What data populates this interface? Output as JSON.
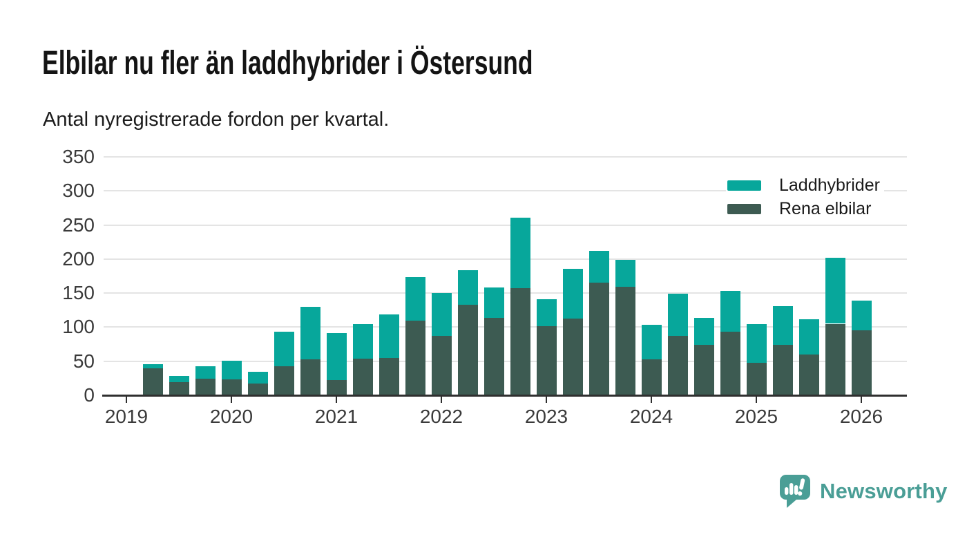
{
  "header": {
    "title": "Elbilar nu fler än laddhybrider i Östersund",
    "subtitle": "Antal nyregistrerade fordon per kvartal."
  },
  "chart_data": {
    "type": "bar",
    "stacked": true,
    "stack_order_bottom_to_top": [
      "Rena elbilar",
      "Laddhybrider"
    ],
    "x_quarters": [
      "2019 Q2",
      "2019 Q3",
      "2019 Q4",
      "2020 Q1",
      "2020 Q2",
      "2020 Q3",
      "2020 Q4",
      "2021 Q1",
      "2021 Q2",
      "2021 Q3",
      "2021 Q4",
      "2022 Q1",
      "2022 Q2",
      "2022 Q3",
      "2022 Q4",
      "2023 Q1",
      "2023 Q2",
      "2023 Q3",
      "2023 Q4",
      "2024 Q1",
      "2024 Q2",
      "2024 Q3",
      "2024 Q4",
      "2025 Q1",
      "2025 Q2",
      "2025 Q3",
      "2025 Q4",
      "2026 Q1"
    ],
    "x_year_ticks": [
      "2019",
      "2020",
      "2021",
      "2022",
      "2023",
      "2024",
      "2025",
      "2026"
    ],
    "series": [
      {
        "name": "Laddhybrider",
        "color": "#07a79b",
        "values": [
          6,
          9,
          19,
          28,
          17,
          50,
          77,
          69,
          51,
          64,
          63,
          63,
          51,
          44,
          104,
          40,
          73,
          47,
          40,
          50,
          62,
          40,
          60,
          56,
          57,
          52,
          97,
          44
        ]
      },
      {
        "name": "Rena elbilar",
        "color": "#3d5b52",
        "values": [
          40,
          19,
          24,
          23,
          17,
          43,
          53,
          22,
          54,
          55,
          110,
          87,
          133,
          114,
          157,
          101,
          113,
          165,
          159,
          53,
          87,
          74,
          93,
          48,
          74,
          60,
          105,
          95
        ]
      }
    ],
    "totals": [
      46,
      28,
      43,
      51,
      34,
      93,
      130,
      91,
      105,
      119,
      173,
      150,
      184,
      158,
      261,
      141,
      186,
      212,
      199,
      103,
      149,
      114,
      153,
      104,
      131,
      112,
      202,
      139
    ],
    "title": "Elbilar nu fler än laddhybrider i Östersund",
    "xlabel": "",
    "ylabel": "",
    "ylim": [
      0,
      350
    ],
    "yticks": [
      0,
      50,
      100,
      150,
      200,
      250,
      300,
      350
    ],
    "grid": "horizontal",
    "legend_position": "top-right"
  },
  "footer": {
    "brand": "Newsworthy"
  },
  "colors": {
    "laddhybrider": "#07a79b",
    "rena_elbilar": "#3d5b52",
    "brand_teal": "#4a9e96",
    "grid": "#e4e4e4",
    "axis": "#2f2f2f",
    "tick_text": "#3a3a3a",
    "text_dark": "#1a1a1a"
  }
}
